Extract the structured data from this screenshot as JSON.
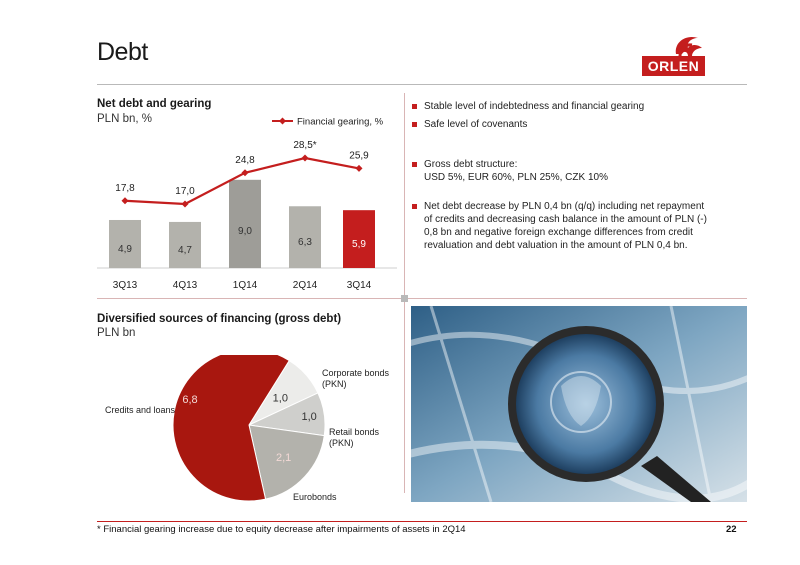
{
  "page": {
    "title": "Debt",
    "page_number": "22",
    "brand": "ORLEN"
  },
  "colors": {
    "accent": "#c41e1e",
    "bar_gray": "#b3b2ac",
    "bar_dark_gray": "#9e9d98"
  },
  "bar_chart": {
    "title": "Net debt and gearing",
    "subtitle": "PLN bn, %"
  },
  "pie_chart": {
    "title": "Diversified sources of financing (gross debt)",
    "subtitle": "PLN bn"
  },
  "bullets_top": [
    "Stable level of indebtedness and financial gearing",
    "Safe level of covenants"
  ],
  "bullets_mid": {
    "label": "Gross debt structure:",
    "detail": "USD 5%, EUR 60%, PLN 25%, CZK 10%"
  },
  "bullets_bottom": [
    "Net debt decrease by PLN 0,4 bn (q/q) including  net repayment of credits and decreasing cash balance  in the amount of PLN (-) 0,8 bn and negative foreign exchange differences from credit revaluation and debt valuation in the amount of PLN 0,4 bn."
  ],
  "footnote": "* Financial gearing increase due to equity decrease after impairments of assets in 2Q14",
  "chart_data": [
    {
      "type": "bar",
      "title": "Net debt and gearing",
      "categories": [
        "3Q13",
        "4Q13",
        "1Q14",
        "2Q14",
        "3Q14"
      ],
      "series": [
        {
          "type": "bar",
          "values": [
            4.9,
            4.7,
            9.0,
            6.3,
            5.9
          ],
          "labels": [
            "4,9",
            "4,7",
            "9,0",
            "6,3",
            "5,9"
          ]
        },
        {
          "type": "line",
          "name": "Financial gearing, %",
          "values": [
            17.8,
            17.0,
            24.8,
            28.5,
            25.9
          ],
          "labels": [
            "17,8",
            "17,0",
            "24,8",
            "28,5*",
            "25,9"
          ]
        }
      ],
      "legend": "top-right",
      "grid": false
    },
    {
      "type": "pie",
      "title": "Diversified sources of financing (gross debt)",
      "slices": [
        {
          "name": "Credits and loans",
          "value": 6.8,
          "label": "6,8",
          "color": "#a8170f"
        },
        {
          "name": "Corporate bonds (PKN)",
          "value": 1.0,
          "label": "1,0",
          "color": "#ececea"
        },
        {
          "name": "Retail bonds (PKN)",
          "value": 1.0,
          "label": "1,0",
          "color": "#cfcfcc"
        },
        {
          "name": "Eurobonds",
          "value": 2.1,
          "label": "2,1",
          "color": "#b3b2ac"
        }
      ]
    }
  ]
}
